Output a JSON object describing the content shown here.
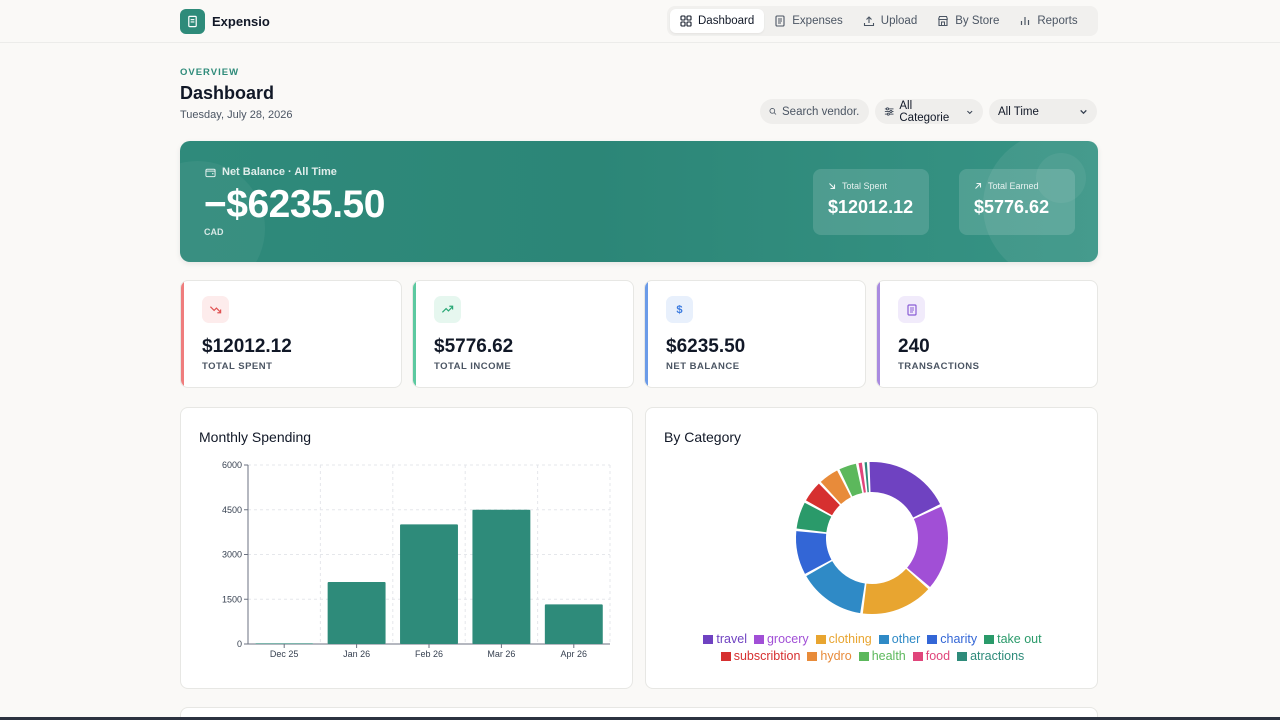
{
  "app": {
    "name": "Expensio"
  },
  "nav": {
    "items": [
      {
        "label": "Dashboard",
        "icon": "grid-icon",
        "active": true
      },
      {
        "label": "Expenses",
        "icon": "receipt-icon",
        "active": false
      },
      {
        "label": "Upload",
        "icon": "upload-icon",
        "active": false
      },
      {
        "label": "By Store",
        "icon": "store-icon",
        "active": false
      },
      {
        "label": "Reports",
        "icon": "bar-chart-icon",
        "active": false
      }
    ]
  },
  "header": {
    "eyebrow": "OVERVIEW",
    "title": "Dashboard",
    "date": "Tuesday, July 28, 2026"
  },
  "filters": {
    "search_placeholder": "Search vendor...",
    "category": "All Categorie",
    "time": "All Time"
  },
  "hero": {
    "label": "Net Balance · All Time",
    "amount": "−$6235.50",
    "currency": "CAD",
    "spent_label": "Total Spent",
    "spent_value": "$12012.12",
    "earned_label": "Total Earned",
    "earned_value": "$5776.62"
  },
  "stats": [
    {
      "value": "$12012.12",
      "label": "TOTAL SPENT",
      "accent": "#ef7d7d",
      "icon": "trending-down-icon"
    },
    {
      "value": "$5776.62",
      "label": "TOTAL INCOME",
      "accent": "#5cc9a0",
      "icon": "trending-up-icon"
    },
    {
      "value": "$6235.50",
      "label": "NET BALANCE",
      "accent": "#6b9be8",
      "icon": "dollar-icon"
    },
    {
      "value": "240",
      "label": "TRANSACTIONS",
      "accent": "#a98be0",
      "icon": "receipt-icon"
    }
  ],
  "monthly": {
    "title": "Monthly Spending"
  },
  "category": {
    "title": "By Category"
  },
  "chart_data": [
    {
      "type": "bar",
      "title": "Monthly Spending",
      "categories": [
        "Dec 25",
        "Jan 26",
        "Feb 26",
        "Mar 26",
        "Apr 26"
      ],
      "values": [
        20,
        2080,
        4010,
        4500,
        1330
      ],
      "ylim": [
        0,
        6000
      ],
      "yticks": [
        0,
        1500,
        3000,
        4500,
        6000
      ],
      "grid": true,
      "color": "#2e8b7a"
    },
    {
      "type": "pie",
      "title": "By Category",
      "donut": true,
      "legend_position": "bottom",
      "slices": [
        {
          "name": "travel",
          "value": 2140,
          "color": "#6f42c1"
        },
        {
          "name": "grocery",
          "value": 2115,
          "color": "#a14fd6"
        },
        {
          "name": "clothing",
          "value": 1800,
          "color": "#e8a530"
        },
        {
          "name": "other",
          "value": 1680,
          "color": "#2f8ac6"
        },
        {
          "name": "charity",
          "value": 1120,
          "color": "#3366d6"
        },
        {
          "name": "take out",
          "value": 715,
          "color": "#2a9a6a"
        },
        {
          "name": "subscribtion",
          "value": 570,
          "color": "#d63030"
        },
        {
          "name": "hydro",
          "value": 540,
          "color": "#e88b3a"
        },
        {
          "name": "health",
          "value": 480,
          "color": "#5cb85c"
        },
        {
          "name": "food",
          "value": 145,
          "color": "#e0457b"
        },
        {
          "name": "atractions",
          "value": 120,
          "color": "#2e8b7a"
        }
      ]
    }
  ]
}
